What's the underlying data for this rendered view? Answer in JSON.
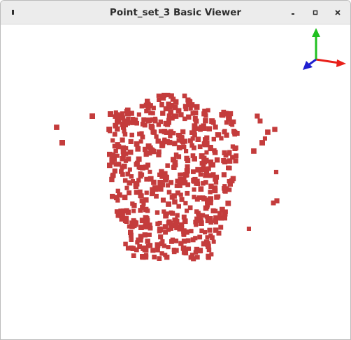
{
  "window": {
    "title": "Point_set_3 Basic Viewer"
  },
  "titlebar_buttons": {
    "menu": "window-menu-icon",
    "minimize": "minimize-icon",
    "maximize": "maximize-icon",
    "close": "close-icon"
  },
  "colors": {
    "point": "#c43c3c",
    "axis_x": "#e8201a",
    "axis_y": "#20c020",
    "axis_z": "#2020d0",
    "background": "#ffffff",
    "titlebar": "#ececec"
  },
  "axes_icon": "xyz-axes-icon"
}
